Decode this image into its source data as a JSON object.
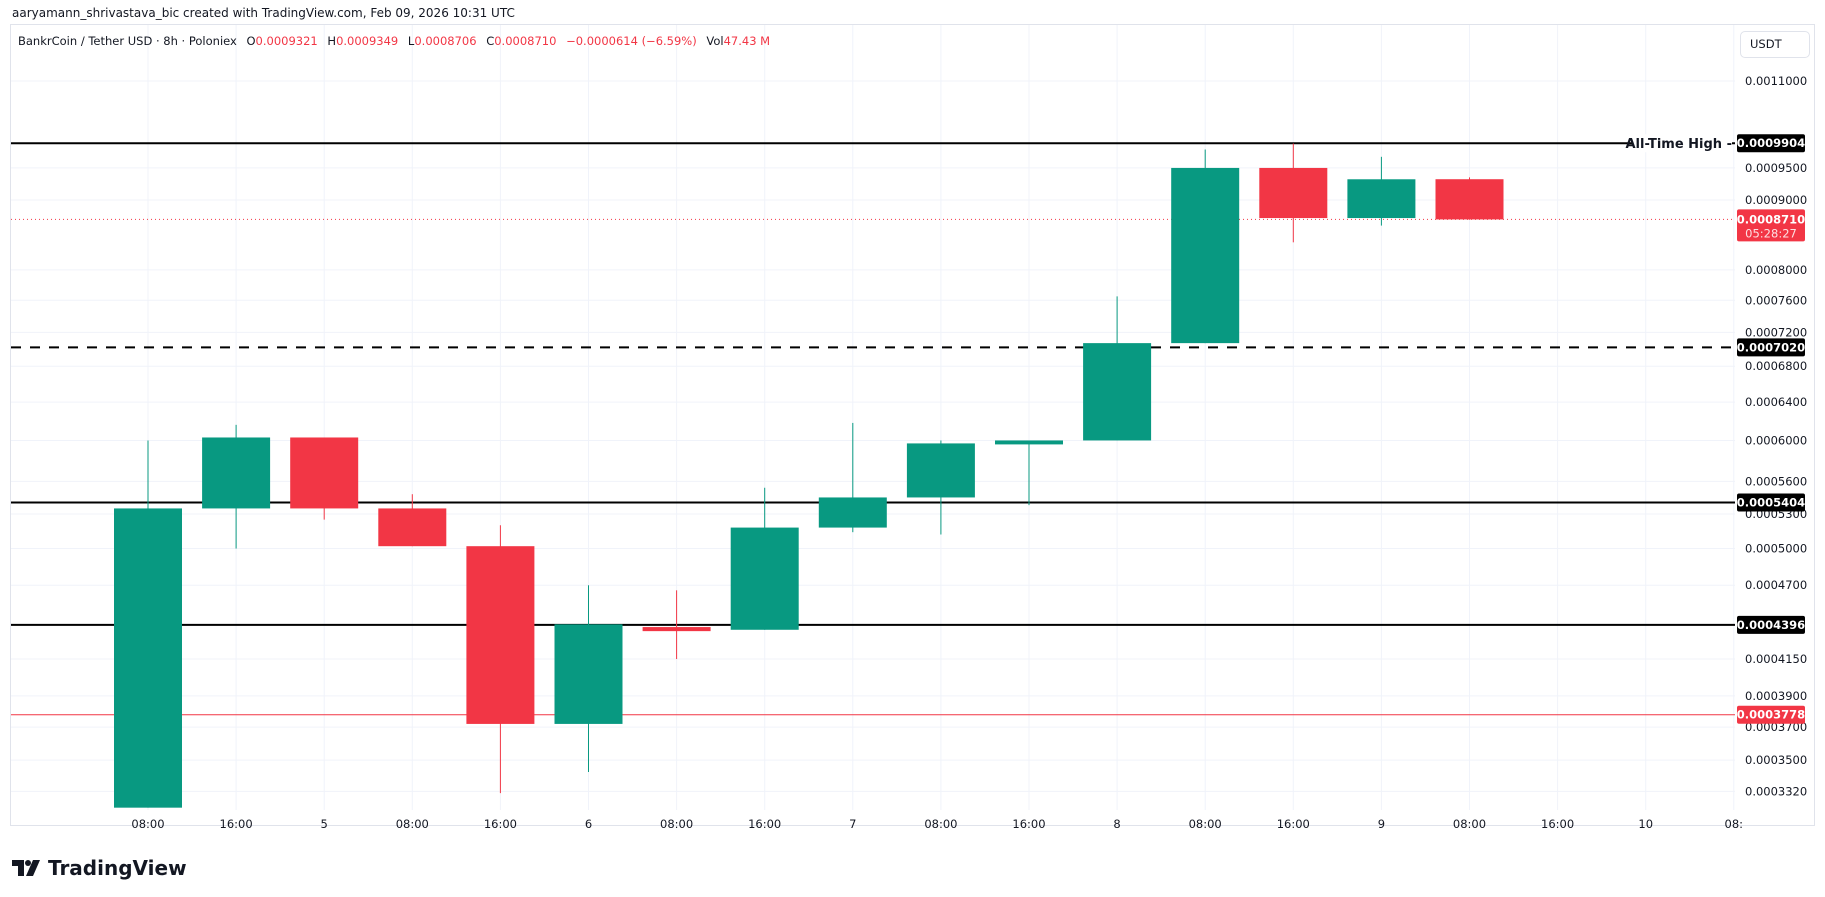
{
  "credit": "aaryamann_shrivastava_bic created with TradingView.com, Feb 09, 2026 10:31 UTC",
  "legend": {
    "symbol": "BankrCoin / Tether USD · 8h · Poloniex",
    "o_label": "O",
    "o": "0.0009321",
    "h_label": "H",
    "h": "0.0009349",
    "l_label": "L",
    "l": "0.0008706",
    "c_label": "C",
    "c": "0.0008710",
    "change": "−0.0000614 (−6.59%)",
    "vol_label": "Vol",
    "vol": "47.43 M"
  },
  "currency_button": "USDT",
  "logo_text": "TradingView",
  "colors": {
    "up": "#089981",
    "down": "#f23645",
    "level": "#000000",
    "grid": "#f0f3fa"
  },
  "chart_data": {
    "type": "candlestick",
    "scale": "log",
    "grid": true,
    "ylim": [
      0.000318,
      0.00118
    ],
    "yticks": [
      "0.0011000",
      "0.0009500",
      "0.0009000",
      "0.0008000",
      "0.0007600",
      "0.0007200",
      "0.0006800",
      "0.0006400",
      "0.0006000",
      "0.0005600",
      "0.0005300",
      "0.0005000",
      "0.0004700",
      "0.0004150",
      "0.0003900",
      "0.0003700",
      "0.0003500",
      "0.0003320"
    ],
    "xticks": [
      "08:00",
      "16:00",
      "5",
      "08:00",
      "16:00",
      "6",
      "08:00",
      "16:00",
      "7",
      "08:00",
      "16:00",
      "8",
      "08:00",
      "16:00",
      "9",
      "08:00",
      "16:00",
      "10",
      "08:"
    ],
    "candles": [
      {
        "o": 0.000323,
        "h": 0.0006,
        "l": 0.000323,
        "c": 0.000535
      },
      {
        "o": 0.000535,
        "h": 0.000616,
        "l": 0.0005,
        "c": 0.000603
      },
      {
        "o": 0.000603,
        "h": 0.000603,
        "l": 0.000525,
        "c": 0.000535
      },
      {
        "o": 0.000535,
        "h": 0.000548,
        "l": 0.000502,
        "c": 0.000502
      },
      {
        "o": 0.000502,
        "h": 0.00052,
        "l": 0.000331,
        "c": 0.000372
      },
      {
        "o": 0.000372,
        "h": 0.00047,
        "l": 0.000343,
        "c": 0.00044
      },
      {
        "o": 0.000438,
        "h": 0.000466,
        "l": 0.000415,
        "c": 0.000435
      },
      {
        "o": 0.000436,
        "h": 0.000554,
        "l": 0.000436,
        "c": 0.000518
      },
      {
        "o": 0.000518,
        "h": 0.000618,
        "l": 0.000514,
        "c": 0.000545
      },
      {
        "o": 0.000545,
        "h": 0.0006,
        "l": 0.000512,
        "c": 0.000597
      },
      {
        "o": 0.000596,
        "h": 0.0006,
        "l": 0.000538,
        "c": 0.0006
      },
      {
        "o": 0.0006,
        "h": 0.000765,
        "l": 0.0006,
        "c": 0.000707
      },
      {
        "o": 0.000707,
        "h": 0.00098,
        "l": 0.000707,
        "c": 0.00095
      },
      {
        "o": 0.00095,
        "h": 0.00099,
        "l": 0.000838,
        "c": 0.000873
      },
      {
        "o": 0.000873,
        "h": 0.000968,
        "l": 0.000862,
        "c": 0.000932
      },
      {
        "o": 0.0009321,
        "h": 0.0009349,
        "l": 0.0008706,
        "c": 0.000871
      }
    ],
    "levels": [
      {
        "value": 0.0009904,
        "label": "0.0009904",
        "style": "solid",
        "color": "#000000",
        "annotation": "All-Time High"
      },
      {
        "value": 0.000702,
        "label": "0.0007020",
        "style": "dashed",
        "color": "#000000"
      },
      {
        "value": 0.0005404,
        "label": "0.0005404",
        "style": "solid",
        "color": "#000000"
      },
      {
        "value": 0.0004396,
        "label": "0.0004396",
        "style": "solid",
        "color": "#000000"
      },
      {
        "value": 0.0003778,
        "label": "0.0003778",
        "style": "thin",
        "color": "#f23645"
      }
    ],
    "last_price": {
      "value": 0.000871,
      "label": "0.0008710",
      "countdown": "05:28:27"
    }
  }
}
